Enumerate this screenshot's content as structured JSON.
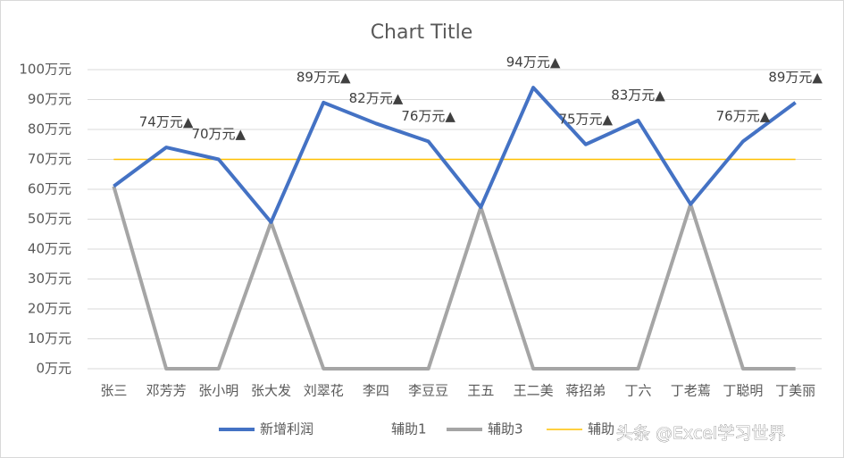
{
  "chart_data": {
    "type": "line",
    "title": "Chart Title",
    "categories": [
      "张三",
      "邓芳芳",
      "张小明",
      "张大发",
      "刘翠花",
      "李四",
      "李豆豆",
      "王五",
      "王二美",
      "蒋招弟",
      "丁六",
      "丁老蔫",
      "丁聪明",
      "丁美丽"
    ],
    "series": [
      {
        "name": "新增利润",
        "color": "#4472c4",
        "values": [
          61,
          74,
          70,
          49,
          89,
          82,
          76,
          54,
          94,
          75,
          83,
          55,
          76,
          89
        ],
        "value_labels": [
          null,
          "74万元▲",
          "70万元▲",
          null,
          "89万元▲",
          "82万元▲",
          "76万元▲",
          null,
          "94万元▲",
          "75万元▲",
          "83万元▲",
          null,
          "76万元▲",
          "89万元▲"
        ]
      },
      {
        "name": "辅助1",
        "color": null,
        "values": [
          null,
          null,
          null,
          null,
          null,
          null,
          null,
          null,
          null,
          null,
          null,
          null,
          null,
          null
        ]
      },
      {
        "name": "辅助3",
        "color": "#a5a5a5",
        "values": [
          61,
          0,
          0,
          49,
          0,
          0,
          0,
          54,
          0,
          0,
          0,
          55,
          0,
          0
        ]
      },
      {
        "name": "辅助",
        "color": "#ffc000",
        "values": [
          70,
          70,
          70,
          70,
          70,
          70,
          70,
          70,
          70,
          70,
          70,
          70,
          70,
          70
        ]
      }
    ],
    "ylim": [
      0,
      100
    ],
    "yticks": [
      {
        "value": 0,
        "label": "0万元"
      },
      {
        "value": 10,
        "label": "10万元"
      },
      {
        "value": 20,
        "label": "20万元"
      },
      {
        "value": 30,
        "label": "30万元"
      },
      {
        "value": 40,
        "label": "40万元"
      },
      {
        "value": 50,
        "label": "50万元"
      },
      {
        "value": 60,
        "label": "60万元"
      },
      {
        "value": 70,
        "label": "70万元"
      },
      {
        "value": 80,
        "label": "80万元"
      },
      {
        "value": 90,
        "label": "90万元"
      },
      {
        "value": 100,
        "label": "100万元"
      }
    ],
    "grid": true,
    "legend": "bottom",
    "watermark": "头条 @Excel学习世界"
  }
}
